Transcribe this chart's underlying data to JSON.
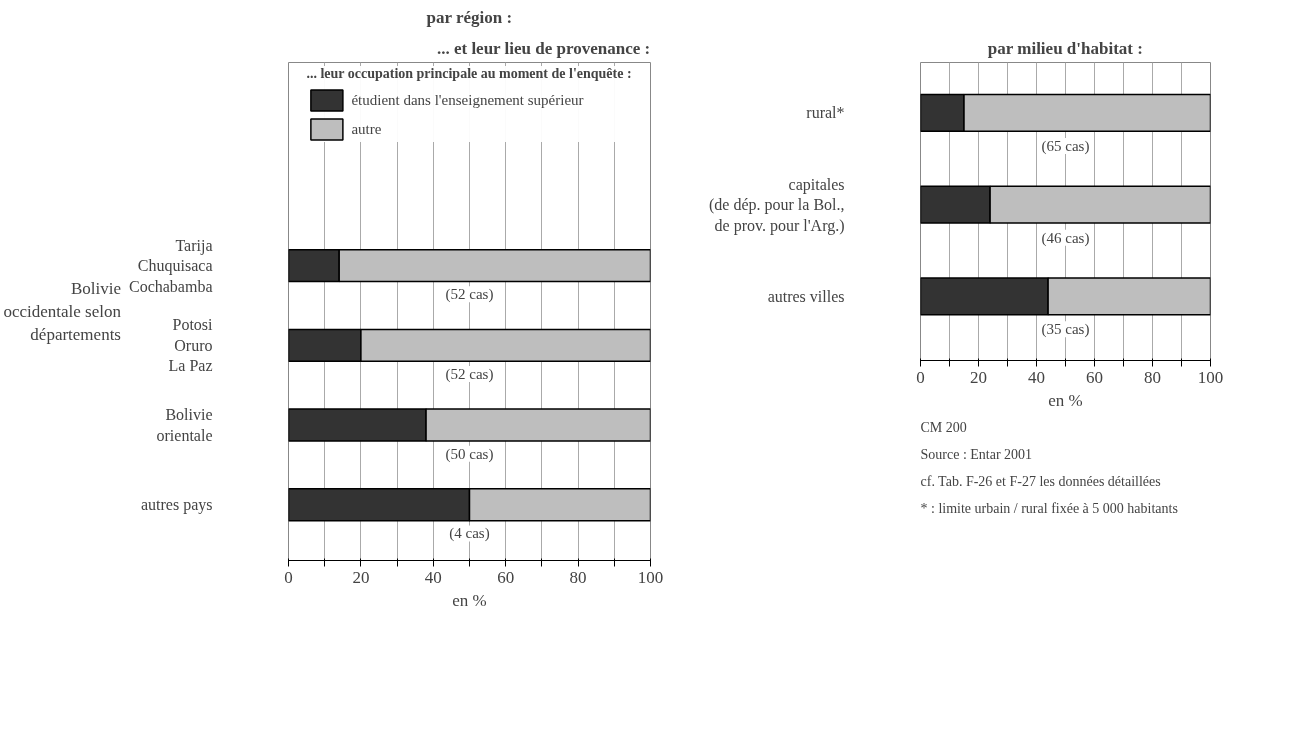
{
  "chart_data": [
    {
      "type": "bar",
      "orientation": "horizontal",
      "stacked": true,
      "title": "par région :",
      "subtitle": "... et leur lieu de provenance :",
      "legend_title": "... leur occupation principale au moment de l'enquête :",
      "legend": "top",
      "xlabel": "en %",
      "categories": [
        "Tarija\nChuquisaca\nCochabamba",
        "Potosi\nOruro\nLa Paz",
        "Bolivie\norientale",
        "autres pays"
      ],
      "series": [
        {
          "name": "étudient dans l'enseignement supérieur",
          "color": "#333333",
          "values": [
            14,
            20,
            38,
            50
          ]
        },
        {
          "name": "autre",
          "color": "#bebebe",
          "values": [
            86,
            80,
            62,
            50
          ]
        }
      ],
      "xlim": [
        0,
        100
      ],
      "xticks": [
        0,
        {
          "value": 10,
          "label": null
        },
        20,
        {
          "value": 30,
          "label": null
        },
        40,
        {
          "value": 50,
          "label": null
        },
        60,
        {
          "value": 70,
          "label": null
        },
        80,
        {
          "value": 90,
          "label": null
        },
        100
      ],
      "grid": "x",
      "annotations": [
        "(52 cas)",
        "(52 cas)",
        "(50 cas)",
        "(4 cas)",
        "Bolivie\noccidentale selon\ndépartements"
      ]
    },
    {
      "type": "bar",
      "orientation": "horizontal",
      "stacked": true,
      "title": "par milieu d'habitat :",
      "xlabel": "en %",
      "categories": [
        "rural*",
        "capitales\n(de dép. pour la Bol.,\nde prov. pour l'Arg.)",
        "autres villes"
      ],
      "series": [
        {
          "color": "#333333",
          "values": [
            15,
            24,
            44
          ]
        },
        {
          "color": "#bebebe",
          "values": [
            85,
            76,
            56
          ]
        }
      ],
      "xlim": [
        0,
        100
      ],
      "xticks": [
        0,
        {
          "value": 10,
          "label": null
        },
        20,
        {
          "value": 30,
          "label": null
        },
        40,
        {
          "value": 50,
          "label": null
        },
        60,
        {
          "value": 70,
          "label": null
        },
        80,
        {
          "value": 90,
          "label": null
        },
        100
      ],
      "grid": "x",
      "annotations": [
        "(65 cas)",
        "(46 cas)",
        "(35 cas)",
        "* : limite urbain / rural fixée à 5 000 habitants",
        "cf. Tab. F-26 et F-27 les données détaillées",
        "Source : Entar 2001",
        "CM 200"
      ]
    }
  ]
}
